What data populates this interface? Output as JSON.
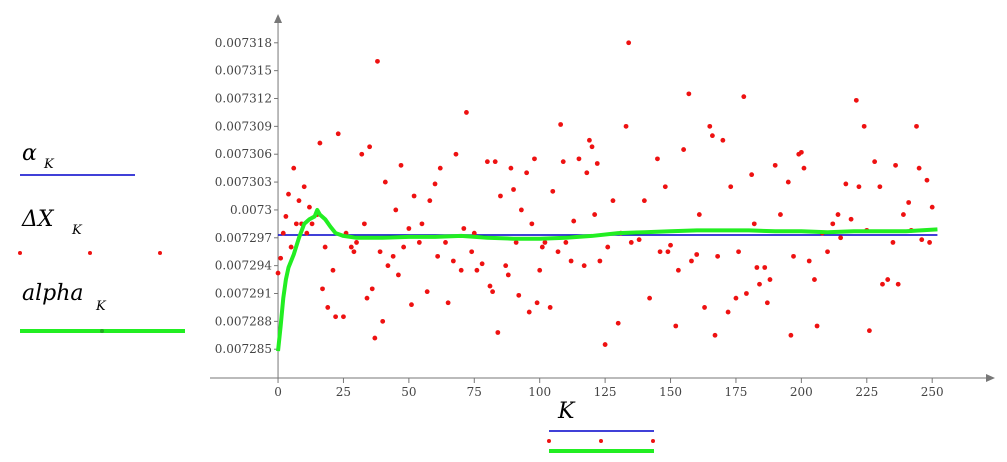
{
  "chart_data": {
    "type": "line",
    "x_label": "K",
    "xlim": [
      -26,
      274
    ],
    "ylim": [
      0.0072819,
      0.0073211
    ],
    "xticks": [
      0,
      25,
      50,
      75,
      100,
      125,
      150,
      175,
      200,
      225,
      250
    ],
    "yticks": [
      0.007285,
      0.007288,
      0.007291,
      0.007294,
      0.007297,
      0.0073,
      0.007303,
      0.007306,
      0.007309,
      0.007312,
      0.007315,
      0.007318
    ],
    "series": [
      {
        "name": "α",
        "name_subscript": "K",
        "color": "#0000cc",
        "style": "line",
        "x": [
          0,
          252
        ],
        "values": [
          0.0072973,
          0.0072973
        ]
      },
      {
        "name": "ΔX",
        "name_subscript": "K",
        "color": "#ee1111",
        "style": "points",
        "x": [
          0,
          1,
          2,
          3,
          4,
          5,
          6,
          7,
          8,
          9,
          10,
          11,
          12,
          13,
          15,
          16,
          17,
          18,
          19,
          21,
          22,
          23,
          25,
          26,
          28,
          29,
          30,
          32,
          33,
          34,
          35,
          36,
          37,
          38,
          39,
          40,
          41,
          42,
          44,
          45,
          46,
          47,
          48,
          50,
          51,
          52,
          54,
          55,
          57,
          58,
          60,
          61,
          62,
          64,
          65,
          67,
          68,
          70,
          71,
          72,
          74,
          75,
          76,
          78,
          80,
          81,
          82,
          83,
          84,
          85,
          87,
          88,
          89,
          90,
          91,
          92,
          93,
          95,
          96,
          97,
          98,
          99,
          100,
          101,
          102,
          104,
          105,
          107,
          108,
          109,
          110,
          112,
          113,
          115,
          117,
          118,
          119,
          120,
          121,
          122,
          123,
          125,
          126,
          128,
          130,
          131,
          133,
          134,
          135,
          138,
          140,
          142,
          145,
          146,
          148,
          149,
          150,
          152,
          153,
          155,
          157,
          158,
          160,
          161,
          163,
          165,
          166,
          167,
          168,
          170,
          172,
          173,
          175,
          176,
          178,
          179,
          181,
          182,
          183,
          184,
          186,
          187,
          188,
          190,
          192,
          195,
          196,
          197,
          199,
          200,
          201,
          203,
          205,
          206,
          208,
          210,
          212,
          214,
          215,
          217,
          219,
          221,
          222,
          224,
          225,
          226,
          228,
          230,
          231,
          233,
          235,
          236,
          237,
          239,
          241,
          242,
          244,
          245,
          246,
          248,
          249,
          250
        ],
        "values": [
          0.0072932,
          0.0072948,
          0.0072975,
          0.0072993,
          0.0073017,
          0.007296,
          0.0073045,
          0.0072985,
          0.007301,
          0.0072985,
          0.0073025,
          0.0072975,
          0.0073003,
          0.0072985,
          0.0072995,
          0.0073072,
          0.0072915,
          0.007296,
          0.0072895,
          0.0072935,
          0.0072885,
          0.0073082,
          0.0072885,
          0.0072975,
          0.007296,
          0.0072955,
          0.0072965,
          0.007306,
          0.0072985,
          0.0072905,
          0.0073068,
          0.0072915,
          0.0072862,
          0.007316,
          0.0072955,
          0.007288,
          0.007303,
          0.007294,
          0.007295,
          0.0073,
          0.007293,
          0.0073048,
          0.007296,
          0.007298,
          0.0072898,
          0.0073015,
          0.0072965,
          0.0072985,
          0.0072912,
          0.007301,
          0.0073028,
          0.007295,
          0.0073045,
          0.0072965,
          0.00729,
          0.0072945,
          0.007306,
          0.0072935,
          0.007298,
          0.0073105,
          0.0072955,
          0.0072975,
          0.0072935,
          0.0072942,
          0.0073052,
          0.0072918,
          0.0072912,
          0.0073052,
          0.0072868,
          0.0073015,
          0.007294,
          0.007293,
          0.0073045,
          0.0073022,
          0.0072965,
          0.0072908,
          0.0073,
          0.007304,
          0.007289,
          0.0072985,
          0.0073055,
          0.00729,
          0.0072935,
          0.007296,
          0.0072965,
          0.0072895,
          0.007302,
          0.0072955,
          0.0073092,
          0.0073052,
          0.0072965,
          0.0072945,
          0.0072988,
          0.0073055,
          0.007294,
          0.007304,
          0.0073075,
          0.0073068,
          0.0072995,
          0.007305,
          0.0072945,
          0.0072855,
          0.007296,
          0.007301,
          0.0072878,
          0.0072975,
          0.007309,
          0.007318,
          0.0072965,
          0.0072968,
          0.007301,
          0.0072905,
          0.0073055,
          0.0072955,
          0.0073025,
          0.0072955,
          0.0072962,
          0.0072875,
          0.0072935,
          0.0073065,
          0.0073125,
          0.0072945,
          0.0072952,
          0.0072995,
          0.0072895,
          0.007309,
          0.007308,
          0.0072865,
          0.007295,
          0.0073075,
          0.007289,
          0.0073025,
          0.0072905,
          0.0072955,
          0.0073122,
          0.007291,
          0.0073038,
          0.0072985,
          0.0072938,
          0.007292,
          0.0072938,
          0.00729,
          0.0072925,
          0.0073048,
          0.0072995,
          0.007303,
          0.0072865,
          0.007295,
          0.007306,
          0.0073062,
          0.0073045,
          0.0072945,
          0.0072925,
          0.0072875,
          0.0072975,
          0.0072955,
          0.0072985,
          0.0072995,
          0.007297,
          0.0073028,
          0.007299,
          0.0073118,
          0.0073025,
          0.007309,
          0.0072978,
          0.007287,
          0.0073052,
          0.0073025,
          0.007292,
          0.0072925,
          0.0072965,
          0.0073048,
          0.007292,
          0.0072995,
          0.0073008,
          0.0072978,
          0.007309,
          0.0073045,
          0.0072968,
          0.0073032,
          0.0072965,
          0.0073003
        ]
      },
      {
        "name": "alpha",
        "name_subscript": "K",
        "color": "#22ee22",
        "style": "line",
        "x": [
          0,
          1,
          2,
          3,
          4,
          5,
          6,
          8,
          10,
          12,
          14,
          15,
          16,
          18,
          20,
          22,
          25,
          30,
          40,
          50,
          60,
          70,
          80,
          90,
          100,
          110,
          120,
          130,
          140,
          150,
          160,
          170,
          180,
          190,
          200,
          210,
          220,
          230,
          240,
          252
        ],
        "values": [
          0.0072848,
          0.0072875,
          0.0072905,
          0.0072925,
          0.0072938,
          0.0072945,
          0.0072952,
          0.007297,
          0.0072985,
          0.007299,
          0.0072993,
          0.0073,
          0.0072995,
          0.007299,
          0.0072982,
          0.0072975,
          0.0072972,
          0.007297,
          0.007297,
          0.0072971,
          0.0072971,
          0.0072972,
          0.007297,
          0.0072969,
          0.0072969,
          0.007297,
          0.0072972,
          0.0072975,
          0.0072976,
          0.0072977,
          0.0072978,
          0.0072978,
          0.0072978,
          0.0072977,
          0.0072977,
          0.0072976,
          0.0072977,
          0.0072977,
          0.0072977,
          0.0072979
        ]
      }
    ]
  }
}
